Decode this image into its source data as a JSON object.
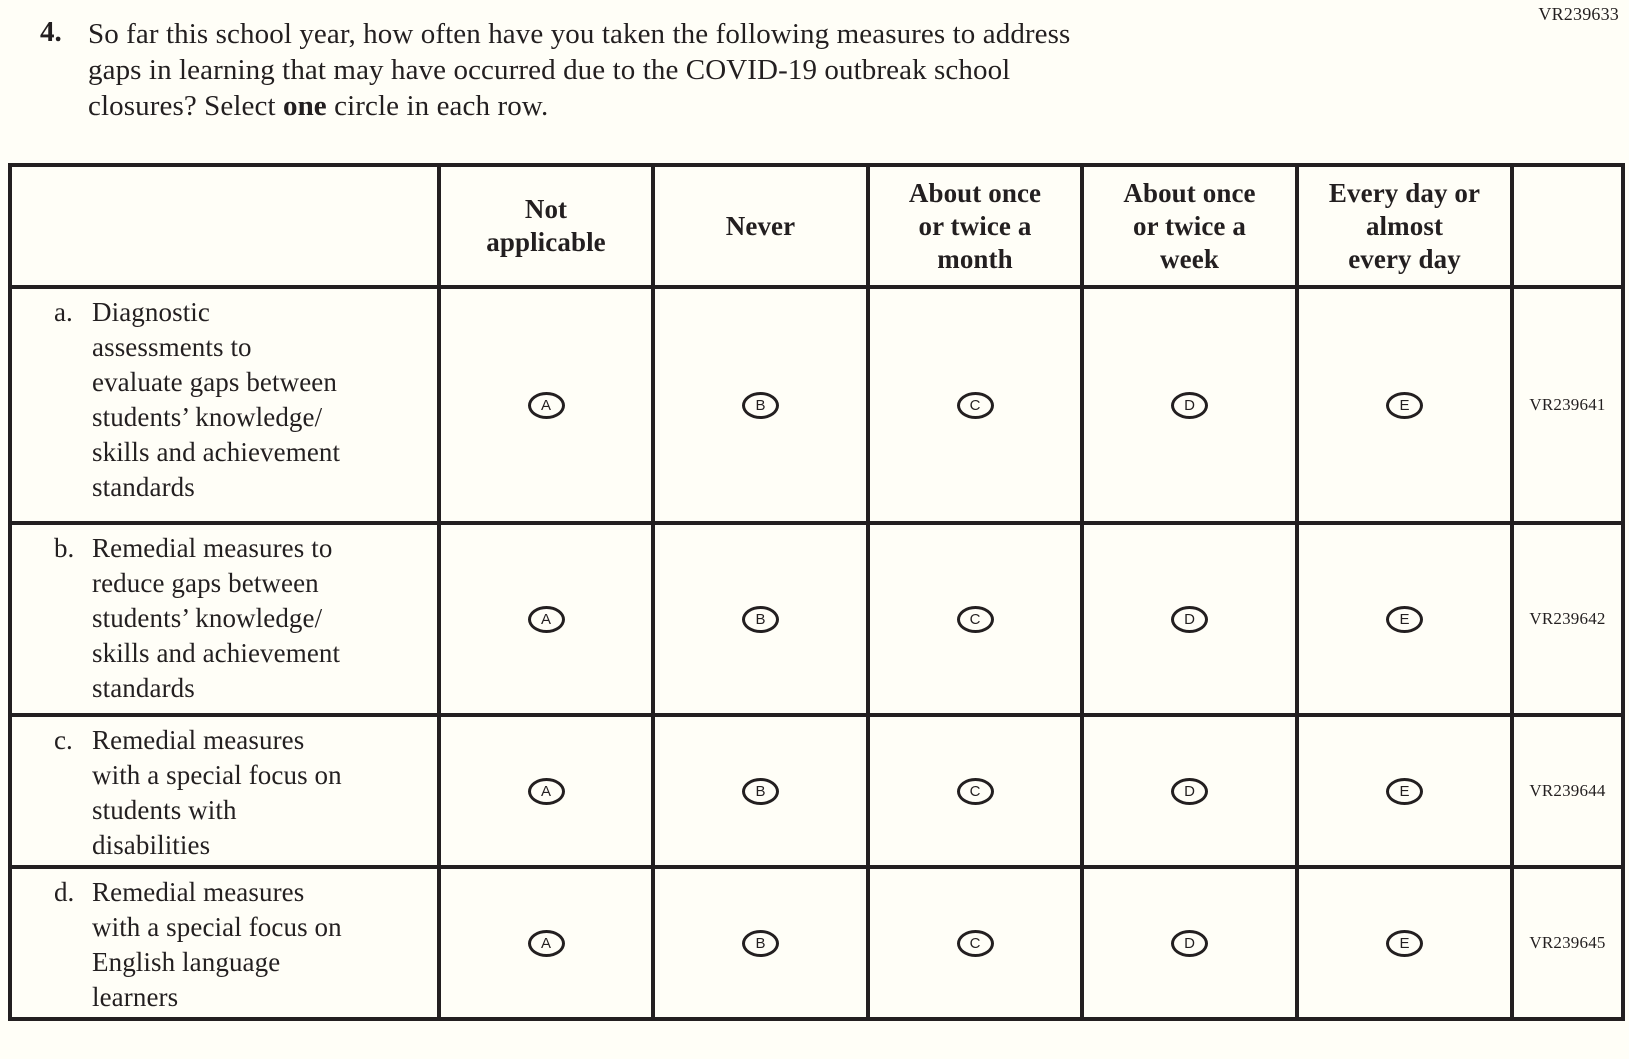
{
  "page": {
    "vr_code_top": "VR239633"
  },
  "question": {
    "number": "4.",
    "line1": "So far this school year, how often have you taken the following measures to address",
    "line2": "gaps in learning that may have occurred due to the COVID-19 outbreak school",
    "line3_pre": "closures? Select ",
    "line3_bold": "one",
    "line3_post": " circle in each row."
  },
  "table": {
    "column_headers": [
      "Not\napplicable",
      "Never",
      "About once\nor twice a\nmonth",
      "About once\nor twice a\nweek",
      "Every day or\nalmost\nevery day"
    ],
    "options": [
      "A",
      "B",
      "C",
      "D",
      "E"
    ],
    "rows": [
      {
        "letter": "a.",
        "label": "Diagnostic\nassessments to\nevaluate gaps between\nstudents’ knowledge/\nskills and achievement\nstandards",
        "vr_code": "VR239641"
      },
      {
        "letter": "b.",
        "label": "Remedial measures to\nreduce gaps between\nstudents’ knowledge/\nskills and achievement\nstandards",
        "vr_code": "VR239642"
      },
      {
        "letter": "c.",
        "label": "Remedial measures\nwith a special focus on\nstudents with\ndisabilities",
        "vr_code": "VR239644"
      },
      {
        "letter": "d.",
        "label": "Remedial measures\nwith a special focus on\nEnglish language\nlearners",
        "vr_code": "VR239645"
      }
    ]
  },
  "colors": {
    "ink": "#231f20",
    "paper": "#fffef7"
  }
}
